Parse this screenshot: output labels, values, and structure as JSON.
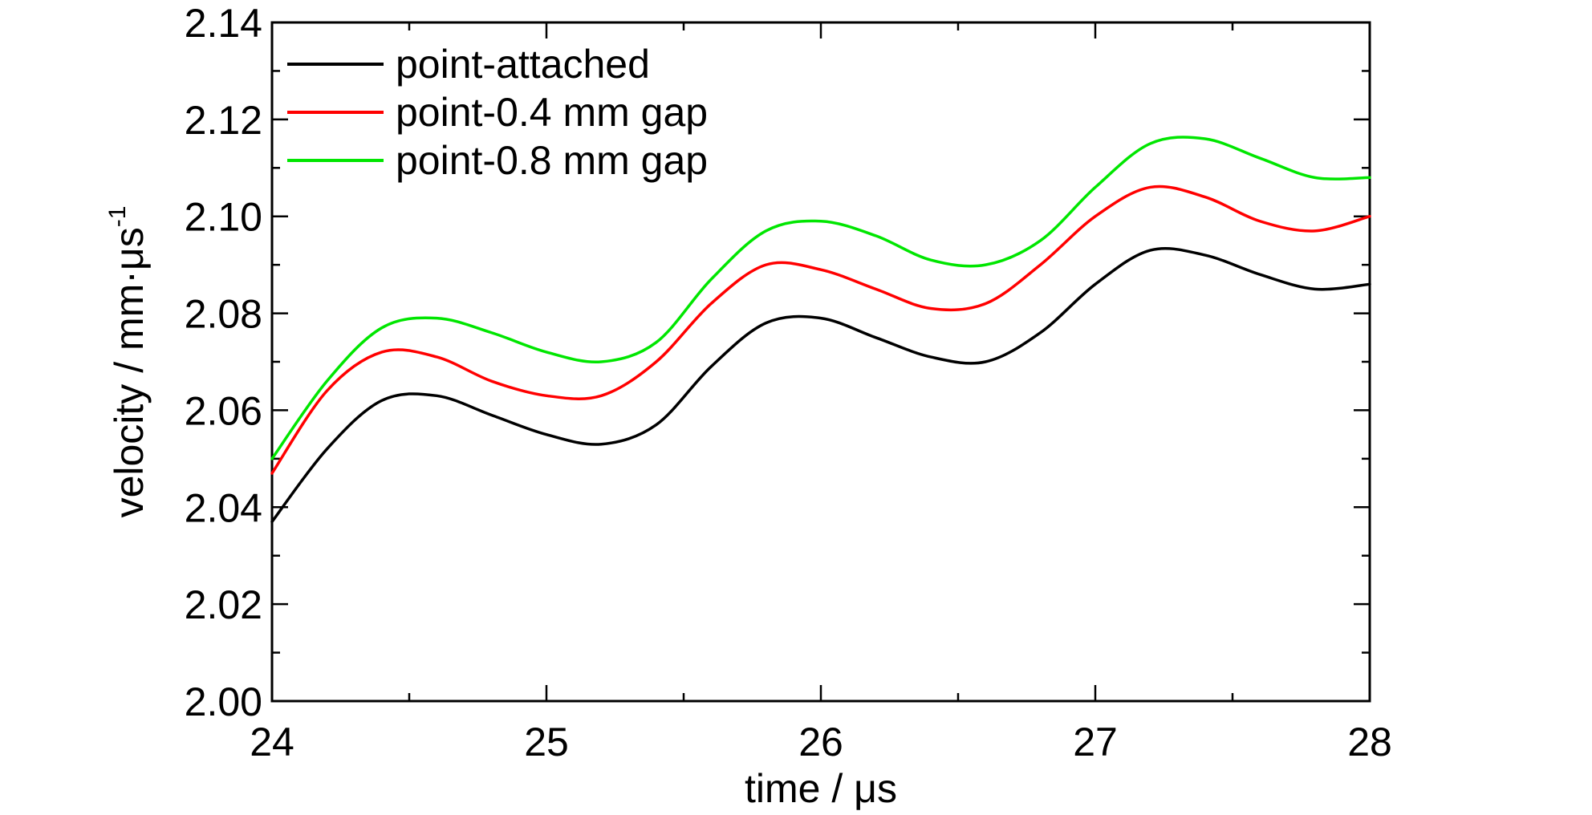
{
  "chart_data": {
    "type": "line",
    "title": "",
    "xlabel": "time / μs",
    "ylabel_main": "velocity / mm·μs",
    "ylabel_sup": "-1",
    "xlim": [
      24,
      28
    ],
    "ylim": [
      2.0,
      2.14
    ],
    "x_ticks": [
      "24",
      "25",
      "26",
      "27",
      "28"
    ],
    "y_ticks": [
      "2.00",
      "2.02",
      "2.04",
      "2.06",
      "2.08",
      "2.10",
      "2.12",
      "2.14"
    ],
    "x_minor_step": 0.5,
    "y_minor_step": 0.01,
    "grid": false,
    "legend_position": "top-left",
    "x": [
      24.0,
      24.2,
      24.4,
      24.6,
      24.8,
      25.0,
      25.2,
      25.4,
      25.6,
      25.8,
      26.0,
      26.2,
      26.4,
      26.6,
      26.8,
      27.0,
      27.2,
      27.4,
      27.6,
      27.8,
      28.0
    ],
    "series": [
      {
        "name": "point-attached",
        "color": "#000000",
        "values": [
          2.037,
          2.052,
          2.062,
          2.063,
          2.059,
          2.055,
          2.053,
          2.057,
          2.069,
          2.078,
          2.079,
          2.075,
          2.071,
          2.07,
          2.076,
          2.086,
          2.093,
          2.092,
          2.088,
          2.085,
          2.086
        ]
      },
      {
        "name": "point-0.4 mm gap",
        "color": "#ff0000",
        "values": [
          2.047,
          2.064,
          2.072,
          2.071,
          2.066,
          2.063,
          2.063,
          2.07,
          2.082,
          2.09,
          2.089,
          2.085,
          2.081,
          2.082,
          2.09,
          2.1,
          2.106,
          2.104,
          2.099,
          2.097,
          2.1
        ]
      },
      {
        "name": "point-0.8 mm gap",
        "color": "#00e600",
        "values": [
          2.05,
          2.066,
          2.077,
          2.079,
          2.076,
          2.072,
          2.07,
          2.074,
          2.087,
          2.097,
          2.099,
          2.096,
          2.091,
          2.09,
          2.095,
          2.106,
          2.115,
          2.116,
          2.112,
          2.108,
          2.108
        ]
      }
    ]
  }
}
